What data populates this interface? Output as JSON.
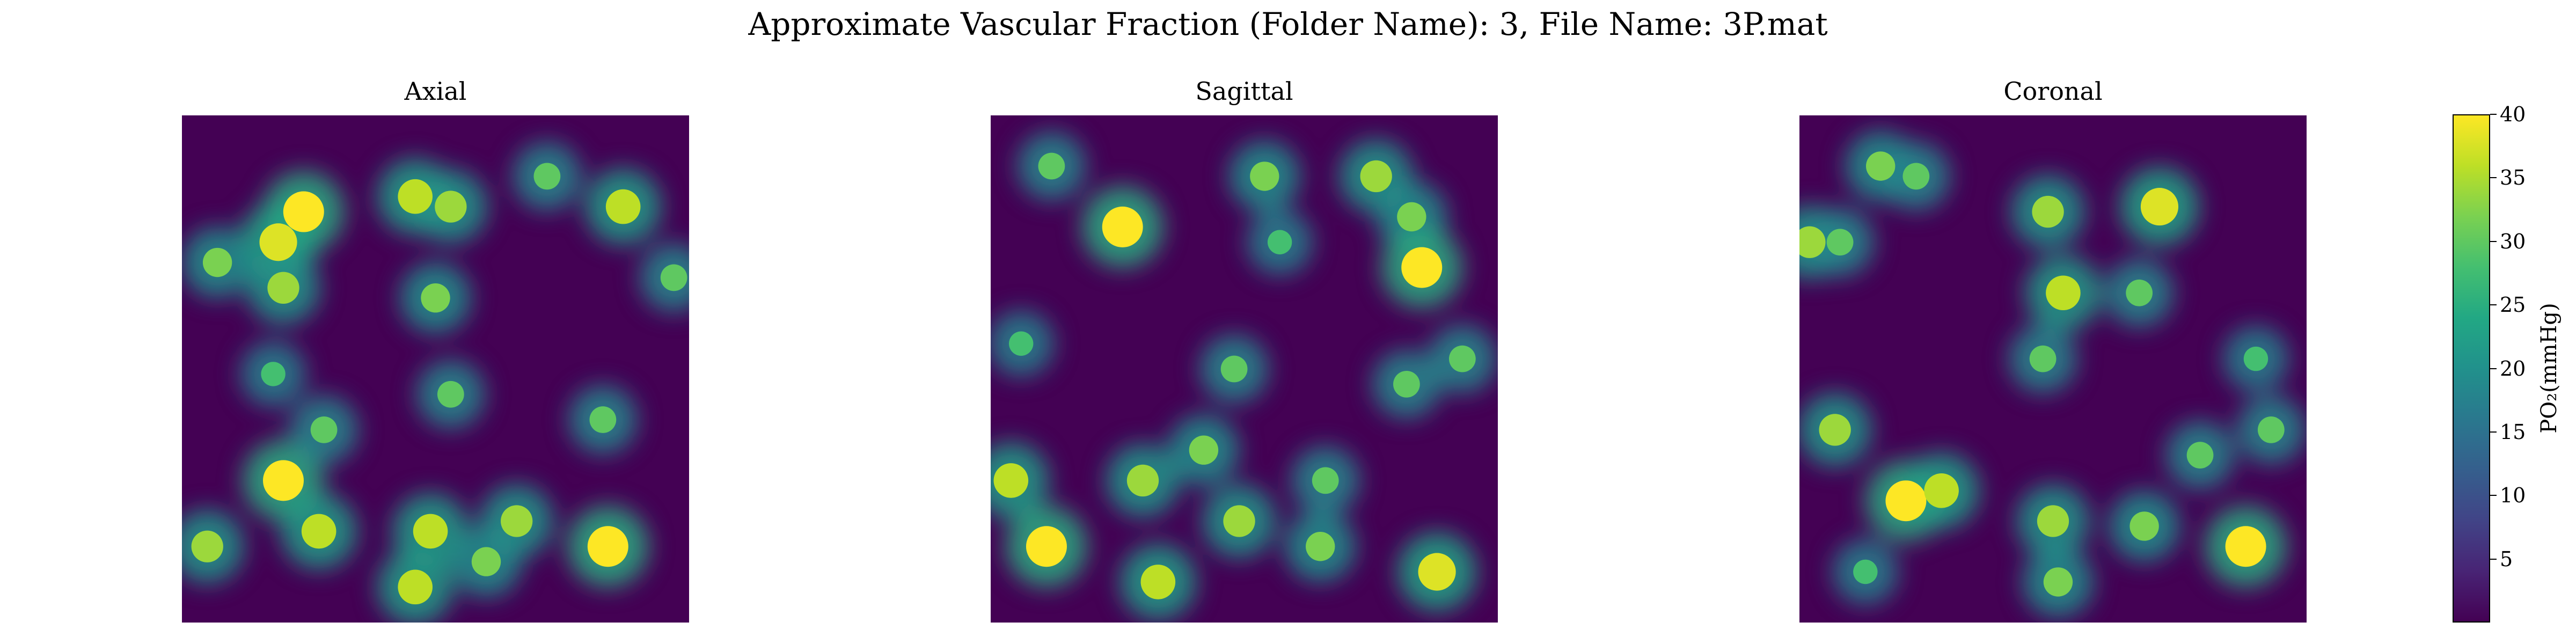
{
  "suptitle": "Approximate Vascular Fraction (Folder Name): 3, File Name: 3P.mat",
  "colorbar": {
    "label": "PO₂(mmHg)",
    "range": [
      0,
      40
    ],
    "ticks": [
      "5",
      "10",
      "15",
      "20",
      "25",
      "30",
      "35",
      "40"
    ],
    "colormap": "viridis"
  },
  "chart_data": [
    {
      "type": "heatmap",
      "title": "Axial",
      "colormap": "viridis",
      "vmin": 0,
      "vmax": 40,
      "background": 0,
      "blobs": [
        {
          "x": 0.24,
          "y": 0.19,
          "v": 40
        },
        {
          "x": 0.19,
          "y": 0.25,
          "v": 38
        },
        {
          "x": 0.46,
          "y": 0.16,
          "v": 36
        },
        {
          "x": 0.53,
          "y": 0.18,
          "v": 34
        },
        {
          "x": 0.87,
          "y": 0.18,
          "v": 36
        },
        {
          "x": 0.07,
          "y": 0.29,
          "v": 32
        },
        {
          "x": 0.2,
          "y": 0.34,
          "v": 34
        },
        {
          "x": 0.5,
          "y": 0.36,
          "v": 32
        },
        {
          "x": 0.72,
          "y": 0.12,
          "v": 30
        },
        {
          "x": 0.97,
          "y": 0.32,
          "v": 30
        },
        {
          "x": 0.18,
          "y": 0.51,
          "v": 28
        },
        {
          "x": 0.53,
          "y": 0.55,
          "v": 30
        },
        {
          "x": 0.2,
          "y": 0.72,
          "v": 40
        },
        {
          "x": 0.28,
          "y": 0.62,
          "v": 30
        },
        {
          "x": 0.05,
          "y": 0.85,
          "v": 34
        },
        {
          "x": 0.27,
          "y": 0.82,
          "v": 36
        },
        {
          "x": 0.49,
          "y": 0.82,
          "v": 36
        },
        {
          "x": 0.66,
          "y": 0.8,
          "v": 34
        },
        {
          "x": 0.84,
          "y": 0.85,
          "v": 40
        },
        {
          "x": 0.6,
          "y": 0.88,
          "v": 32
        },
        {
          "x": 0.83,
          "y": 0.6,
          "v": 30
        },
        {
          "x": 0.46,
          "y": 0.93,
          "v": 36
        }
      ]
    },
    {
      "type": "heatmap",
      "title": "Sagittal",
      "colormap": "viridis",
      "vmin": 0,
      "vmax": 40,
      "background": 0,
      "blobs": [
        {
          "x": 0.26,
          "y": 0.22,
          "v": 40
        },
        {
          "x": 0.12,
          "y": 0.1,
          "v": 30
        },
        {
          "x": 0.54,
          "y": 0.12,
          "v": 32
        },
        {
          "x": 0.76,
          "y": 0.12,
          "v": 34
        },
        {
          "x": 0.83,
          "y": 0.2,
          "v": 32
        },
        {
          "x": 0.85,
          "y": 0.3,
          "v": 40
        },
        {
          "x": 0.57,
          "y": 0.25,
          "v": 28
        },
        {
          "x": 0.06,
          "y": 0.45,
          "v": 28
        },
        {
          "x": 0.48,
          "y": 0.5,
          "v": 30
        },
        {
          "x": 0.82,
          "y": 0.53,
          "v": 30
        },
        {
          "x": 0.93,
          "y": 0.48,
          "v": 30
        },
        {
          "x": 0.11,
          "y": 0.85,
          "v": 40
        },
        {
          "x": 0.04,
          "y": 0.72,
          "v": 36
        },
        {
          "x": 0.3,
          "y": 0.72,
          "v": 34
        },
        {
          "x": 0.42,
          "y": 0.66,
          "v": 32
        },
        {
          "x": 0.49,
          "y": 0.8,
          "v": 34
        },
        {
          "x": 0.66,
          "y": 0.72,
          "v": 30
        },
        {
          "x": 0.33,
          "y": 0.92,
          "v": 36
        },
        {
          "x": 0.65,
          "y": 0.85,
          "v": 32
        },
        {
          "x": 0.88,
          "y": 0.9,
          "v": 38
        }
      ]
    },
    {
      "type": "heatmap",
      "title": "Coronal",
      "colormap": "viridis",
      "vmin": 0,
      "vmax": 40,
      "background": 0,
      "blobs": [
        {
          "x": 0.16,
          "y": 0.1,
          "v": 32
        },
        {
          "x": 0.23,
          "y": 0.12,
          "v": 30
        },
        {
          "x": 0.02,
          "y": 0.25,
          "v": 34
        },
        {
          "x": 0.08,
          "y": 0.25,
          "v": 30
        },
        {
          "x": 0.49,
          "y": 0.19,
          "v": 34
        },
        {
          "x": 0.71,
          "y": 0.18,
          "v": 38
        },
        {
          "x": 0.52,
          "y": 0.35,
          "v": 36
        },
        {
          "x": 0.48,
          "y": 0.48,
          "v": 30
        },
        {
          "x": 0.67,
          "y": 0.35,
          "v": 30
        },
        {
          "x": 0.9,
          "y": 0.48,
          "v": 28
        },
        {
          "x": 0.07,
          "y": 0.62,
          "v": 34
        },
        {
          "x": 0.21,
          "y": 0.76,
          "v": 40
        },
        {
          "x": 0.28,
          "y": 0.74,
          "v": 36
        },
        {
          "x": 0.5,
          "y": 0.8,
          "v": 34
        },
        {
          "x": 0.68,
          "y": 0.81,
          "v": 32
        },
        {
          "x": 0.88,
          "y": 0.85,
          "v": 40
        },
        {
          "x": 0.51,
          "y": 0.92,
          "v": 32
        },
        {
          "x": 0.79,
          "y": 0.67,
          "v": 30
        },
        {
          "x": 0.93,
          "y": 0.62,
          "v": 30
        },
        {
          "x": 0.13,
          "y": 0.9,
          "v": 28
        }
      ]
    }
  ]
}
